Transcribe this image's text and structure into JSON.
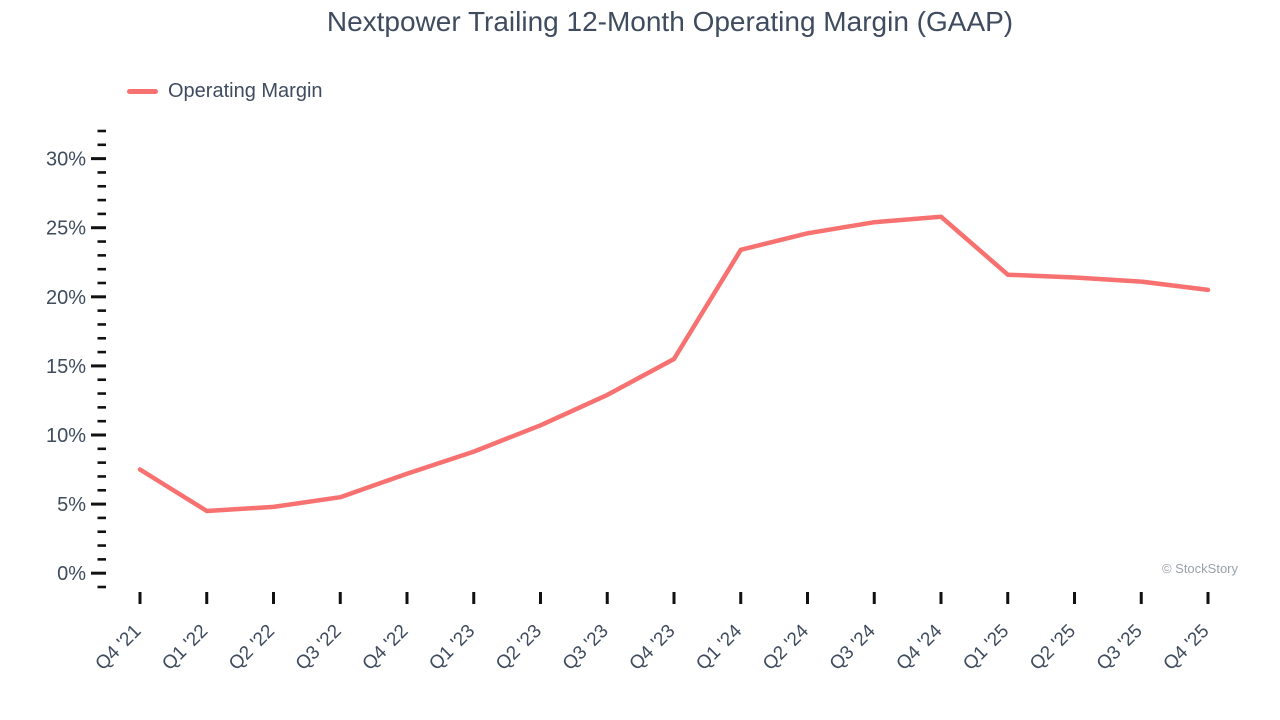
{
  "chart": {
    "watermark": "© StockStory"
  },
  "colors": {
    "accent_line": "#F87171",
    "text": "#3F4B5E",
    "tick": "#111111",
    "watermark": "#9BA1A8"
  },
  "chart_data": {
    "type": "line",
    "title": "Nextpower Trailing 12-Month Operating Margin (GAAP)",
    "categories": [
      "Q4 '21",
      "Q1 '22",
      "Q2 '22",
      "Q3 '22",
      "Q4 '22",
      "Q1 '23",
      "Q2 '23",
      "Q3 '23",
      "Q4 '23",
      "Q1 '24",
      "Q2 '24",
      "Q3 '24",
      "Q4 '24",
      "Q1 '25",
      "Q2 '25",
      "Q3 '25",
      "Q4 '25"
    ],
    "series": [
      {
        "name": "Operating Margin",
        "color": "#F87171",
        "values": [
          7.5,
          4.5,
          4.8,
          5.5,
          7.2,
          8.8,
          10.7,
          12.9,
          15.5,
          23.4,
          24.6,
          25.4,
          25.8,
          21.6,
          21.4,
          21.1,
          20.5
        ]
      }
    ],
    "xlabel": "",
    "ylabel": "",
    "ylim": [
      -1,
      32
    ],
    "y_major_ticks": [
      0,
      5,
      10,
      15,
      20,
      25,
      30
    ],
    "y_minor_step": 1,
    "y_tick_suffix": "%",
    "grid": false,
    "legend_position": "top-left"
  }
}
